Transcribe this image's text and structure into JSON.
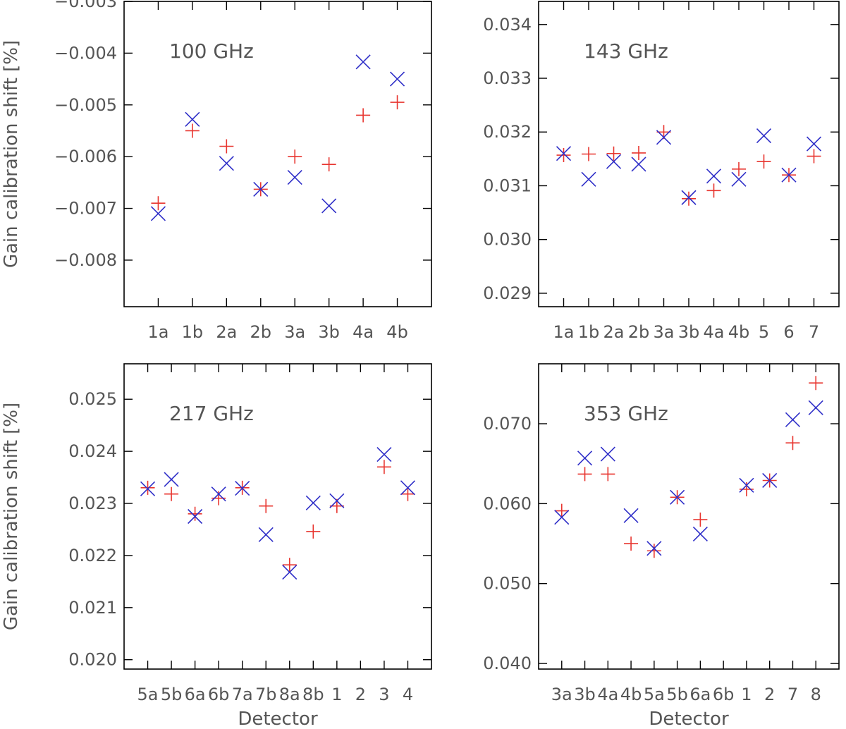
{
  "colors": {
    "series_plus": "#e8352f",
    "series_x": "#2f2fc8",
    "text": "#555555"
  },
  "chart_data": [
    {
      "type": "scatter",
      "title": "100 GHz",
      "xlabel": "",
      "ylabel": "Gain calibration shift [%]",
      "categories": [
        "1a",
        "1b",
        "2a",
        "2b",
        "3a",
        "3b",
        "4a",
        "4b"
      ],
      "ylim": [
        -0.0089,
        -0.003
      ],
      "yticks": [
        -0.003,
        -0.004,
        -0.005,
        -0.006,
        -0.007,
        -0.008
      ],
      "ytick_labels": [
        "−0.003",
        "−0.004",
        "−0.005",
        "−0.006",
        "−0.007",
        "−0.008"
      ],
      "series": [
        {
          "marker": "plus",
          "values": [
            -0.0069,
            -0.0055,
            -0.0058,
            -0.00663,
            -0.006,
            -0.00615,
            -0.0052,
            -0.00495
          ]
        },
        {
          "marker": "x",
          "values": [
            -0.0071,
            -0.00528,
            -0.00613,
            -0.00663,
            -0.0064,
            -0.00695,
            -0.00417,
            -0.0045
          ]
        }
      ]
    },
    {
      "type": "scatter",
      "title": "143 GHz",
      "xlabel": "",
      "ylabel": "",
      "categories": [
        "1a",
        "1b",
        "2a",
        "2b",
        "3a",
        "3b",
        "4a",
        "4b",
        "5",
        "6",
        "7"
      ],
      "ylim": [
        0.02875,
        0.03443
      ],
      "yticks": [
        0.034,
        0.033,
        0.032,
        0.031,
        0.03,
        0.029
      ],
      "ytick_labels": [
        "0.034",
        "0.033",
        "0.032",
        "0.031",
        "0.030",
        "0.029"
      ],
      "series": [
        {
          "marker": "plus",
          "values": [
            0.03157,
            0.03159,
            0.0316,
            0.03161,
            0.032,
            0.03076,
            0.03091,
            0.03131,
            0.03145,
            0.0312,
            0.03155
          ]
        },
        {
          "marker": "x",
          "values": [
            0.0316,
            0.03112,
            0.03145,
            0.0314,
            0.0319,
            0.03078,
            0.03118,
            0.03112,
            0.03193,
            0.0312,
            0.03178
          ]
        }
      ]
    },
    {
      "type": "scatter",
      "title": "217 GHz",
      "xlabel": "Detector",
      "ylabel": "Gain calibration shift [%]",
      "categories": [
        "5a",
        "5b",
        "6a",
        "6b",
        "7a",
        "7b",
        "8a",
        "8b",
        "1",
        "2",
        "3",
        "4"
      ],
      "ylim": [
        0.01982,
        0.02568
      ],
      "yticks": [
        0.025,
        0.024,
        0.023,
        0.022,
        0.021,
        0.02
      ],
      "ytick_labels": [
        "0.025",
        "0.024",
        "0.023",
        "0.022",
        "0.021",
        "0.020"
      ],
      "series": [
        {
          "marker": "plus",
          "values": [
            0.0233,
            0.02318,
            0.0228,
            0.0231,
            0.0233,
            0.02295,
            0.02182,
            0.02246,
            0.02295,
            null,
            0.0237,
            0.02318
          ]
        },
        {
          "marker": "x",
          "values": [
            0.02328,
            0.02346,
            0.02275,
            0.02318,
            0.02329,
            0.0224,
            0.02168,
            0.02301,
            0.02305,
            null,
            0.02394,
            0.0233
          ]
        }
      ]
    },
    {
      "type": "scatter",
      "title": "353 GHz",
      "xlabel": "Detector",
      "ylabel": "",
      "categories": [
        "3a",
        "3b",
        "4a",
        "4b",
        "5a",
        "5b",
        "6a",
        "6b",
        "1",
        "2",
        "7",
        "8"
      ],
      "ylim": [
        0.0393,
        0.0775
      ],
      "yticks": [
        0.07,
        0.06,
        0.05,
        0.04
      ],
      "ytick_labels": [
        "0.070",
        "0.060",
        "0.050",
        "0.040"
      ],
      "series": [
        {
          "marker": "plus",
          "values": [
            0.0591,
            0.0637,
            0.0637,
            0.055,
            0.0541,
            0.0608,
            0.058,
            null,
            0.0618,
            0.0629,
            0.0676,
            0.0751
          ]
        },
        {
          "marker": "x",
          "values": [
            0.0583,
            0.0657,
            0.0662,
            0.0585,
            0.0544,
            0.0608,
            0.0562,
            null,
            0.0623,
            0.0629,
            0.0705,
            0.072
          ]
        }
      ]
    }
  ]
}
